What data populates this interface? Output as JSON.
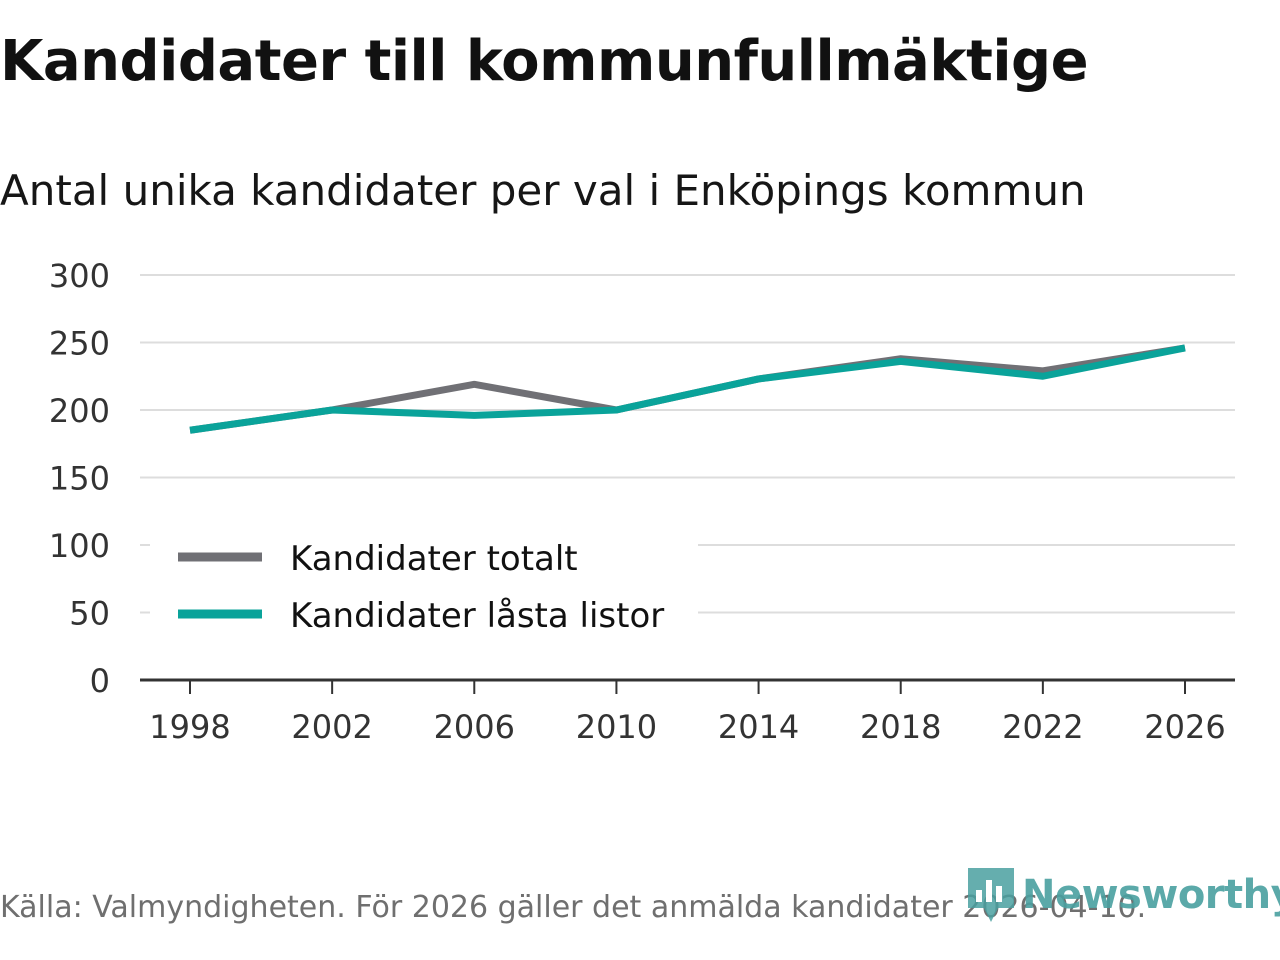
{
  "title": "Kandidater till kommunfullmäktige",
  "subtitle": "Antal unika kandidater per val i Enköpings kommun",
  "source": "Källa: Valmyndigheten. För 2026 gäller det anmälda kandidater 2026-04-10.",
  "logo": {
    "text": "Newsworthy",
    "icon": "bar-chart-pin-icon",
    "color": "#4aa0a0"
  },
  "chart_data": {
    "type": "line",
    "title": "Kandidater till kommunfullmäktige",
    "subtitle": "Antal unika kandidater per val i Enköpings kommun",
    "xlabel": "",
    "ylabel": "",
    "x": [
      "1998",
      "2002",
      "2006",
      "2010",
      "2014",
      "2018",
      "2022",
      "2026"
    ],
    "ylim": [
      0,
      300
    ],
    "yticks": [
      "0",
      "50",
      "100",
      "150",
      "200",
      "250",
      "300"
    ],
    "grid": true,
    "legend_position": "bottom-left",
    "series": [
      {
        "name": "Kandidater totalt",
        "color": "#707075",
        "values": [
          185,
          200,
          219,
          200,
          223,
          238,
          229,
          246
        ]
      },
      {
        "name": "Kandidater låsta listor",
        "color": "#0aa39a",
        "values": [
          185,
          200,
          196,
          200,
          223,
          236,
          225,
          246
        ]
      }
    ]
  }
}
